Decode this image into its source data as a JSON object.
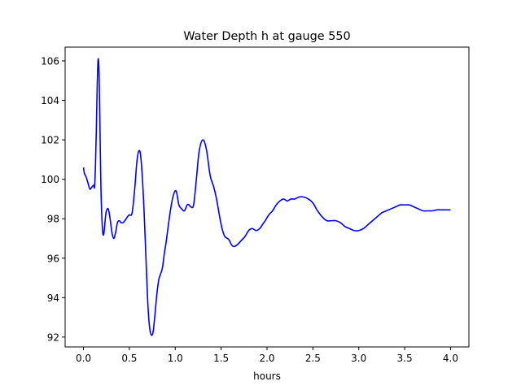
{
  "chart_data": {
    "type": "line",
    "title": "Water Depth h at gauge 550",
    "xlabel": "hours",
    "ylabel": "",
    "xlim": [
      -0.2,
      4.2
    ],
    "ylim": [
      91.5,
      106.7
    ],
    "grid": false,
    "colors": {
      "series": "#0000ff",
      "axes": "#000000",
      "background": "#ffffff"
    },
    "xticks": [
      {
        "value": 0.0,
        "label": "0.0"
      },
      {
        "value": 0.5,
        "label": "0.5"
      },
      {
        "value": 1.0,
        "label": "1.0"
      },
      {
        "value": 1.5,
        "label": "1.5"
      },
      {
        "value": 2.0,
        "label": "2.0"
      },
      {
        "value": 2.5,
        "label": "2.5"
      },
      {
        "value": 3.0,
        "label": "3.0"
      },
      {
        "value": 3.5,
        "label": "3.5"
      },
      {
        "value": 4.0,
        "label": "4.0"
      }
    ],
    "yticks": [
      {
        "value": 92,
        "label": "92"
      },
      {
        "value": 94,
        "label": "94"
      },
      {
        "value": 96,
        "label": "96"
      },
      {
        "value": 98,
        "label": "98"
      },
      {
        "value": 100,
        "label": "100"
      },
      {
        "value": 102,
        "label": "102"
      },
      {
        "value": 104,
        "label": "104"
      },
      {
        "value": 106,
        "label": "106"
      }
    ],
    "series": [
      {
        "x": [
          0.0,
          0.01,
          0.03,
          0.05,
          0.07,
          0.09,
          0.11,
          0.12,
          0.13,
          0.14,
          0.15,
          0.16,
          0.17,
          0.18,
          0.19,
          0.2,
          0.21,
          0.22,
          0.23,
          0.24,
          0.25,
          0.27,
          0.29,
          0.31,
          0.33,
          0.35,
          0.37,
          0.39,
          0.41,
          0.43,
          0.45,
          0.48,
          0.5,
          0.53,
          0.56,
          0.58,
          0.6,
          0.62,
          0.64,
          0.66,
          0.68,
          0.7,
          0.72,
          0.74,
          0.76,
          0.78,
          0.8,
          0.82,
          0.84,
          0.86,
          0.88,
          0.9,
          0.92,
          0.95,
          0.98,
          1.01,
          1.04,
          1.07,
          1.1,
          1.13,
          1.15,
          1.17,
          1.2,
          1.23,
          1.26,
          1.3,
          1.34,
          1.38,
          1.42,
          1.45,
          1.48,
          1.51,
          1.54,
          1.57,
          1.59,
          1.61,
          1.63,
          1.65,
          1.68,
          1.72,
          1.76,
          1.8,
          1.84,
          1.88,
          1.92,
          1.95,
          1.98,
          2.02,
          2.06,
          2.1,
          2.14,
          2.18,
          2.22,
          2.26,
          2.3,
          2.35,
          2.4,
          2.45,
          2.5,
          2.55,
          2.6,
          2.65,
          2.7,
          2.75,
          2.8,
          2.85,
          2.9,
          2.95,
          3.0,
          3.05,
          3.1,
          3.15,
          3.2,
          3.25,
          3.3,
          3.35,
          3.4,
          3.45,
          3.5,
          3.55,
          3.6,
          3.65,
          3.7,
          3.75,
          3.8,
          3.85,
          3.9,
          3.95,
          4.0
        ],
        "y": [
          100.6,
          100.3,
          100.1,
          99.8,
          99.5,
          99.6,
          99.7,
          99.6,
          100.6,
          102.5,
          104.8,
          106.1,
          105.3,
          102.5,
          99.6,
          98.1,
          97.3,
          97.2,
          97.6,
          98.1,
          98.4,
          98.5,
          98.0,
          97.3,
          97.0,
          97.3,
          97.8,
          97.9,
          97.8,
          97.8,
          97.9,
          98.1,
          98.2,
          98.3,
          99.6,
          100.8,
          101.4,
          101.3,
          100.2,
          98.4,
          96.1,
          93.8,
          92.5,
          92.1,
          92.3,
          93.2,
          94.2,
          94.9,
          95.2,
          95.5,
          96.2,
          96.8,
          97.5,
          98.5,
          99.2,
          99.4,
          98.7,
          98.5,
          98.4,
          98.7,
          98.7,
          98.6,
          98.7,
          100.0,
          101.4,
          102.0,
          101.5,
          100.2,
          99.6,
          99.0,
          98.2,
          97.5,
          97.1,
          97.0,
          96.9,
          96.7,
          96.6,
          96.6,
          96.7,
          96.9,
          97.1,
          97.4,
          97.5,
          97.4,
          97.5,
          97.7,
          97.9,
          98.2,
          98.4,
          98.7,
          98.9,
          99.0,
          98.9,
          99.0,
          99.0,
          99.1,
          99.1,
          99.0,
          98.8,
          98.4,
          98.1,
          97.9,
          97.9,
          97.9,
          97.8,
          97.6,
          97.5,
          97.4,
          97.4,
          97.5,
          97.7,
          97.9,
          98.1,
          98.3,
          98.4,
          98.5,
          98.6,
          98.7,
          98.7,
          98.7,
          98.6,
          98.5,
          98.4,
          98.4,
          98.4,
          98.45,
          98.45,
          98.45,
          98.45
        ]
      }
    ]
  }
}
